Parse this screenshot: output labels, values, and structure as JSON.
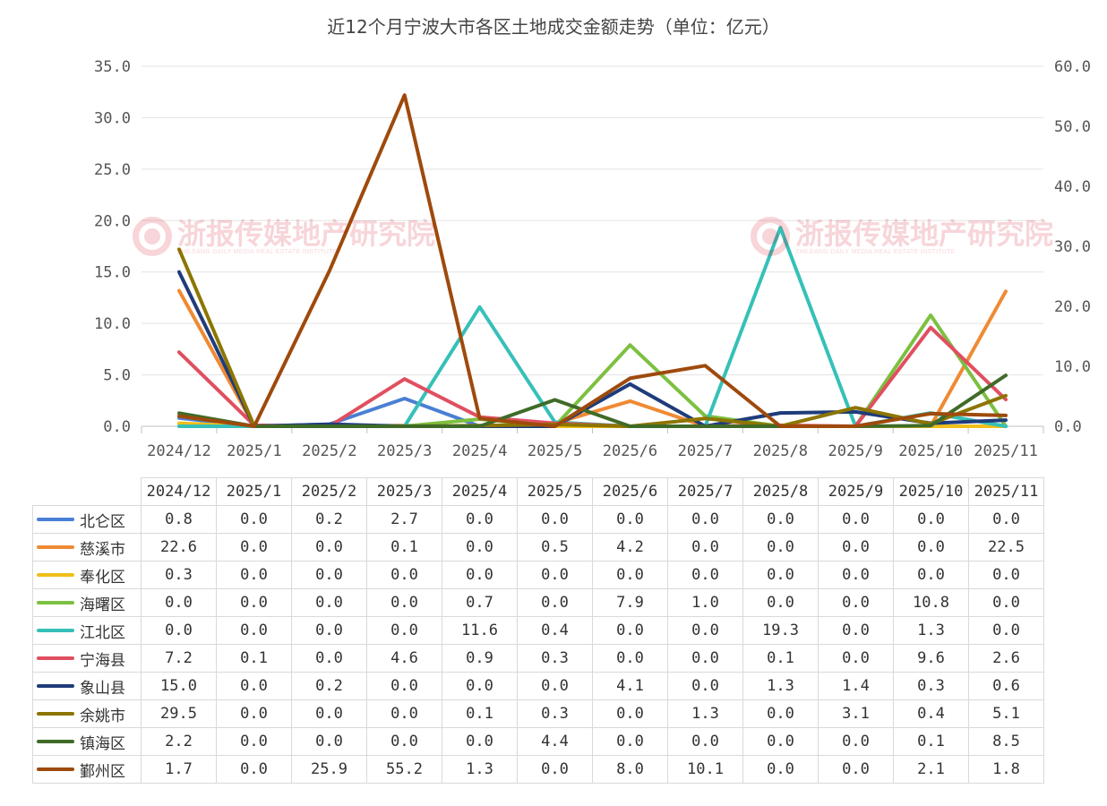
{
  "chart_data": {
    "type": "line",
    "title": "近12个月宁波大市各区土地成交金额走势（单位：亿元）",
    "categories": [
      "2024/12",
      "2025/1",
      "2025/2",
      "2025/3",
      "2025/4",
      "2025/5",
      "2025/6",
      "2025/7",
      "2025/8",
      "2025/9",
      "2025/10",
      "2025/11"
    ],
    "y_left": {
      "min": 0,
      "max": 35,
      "step": 5,
      "ticks": [
        "0.0",
        "5.0",
        "10.0",
        "15.0",
        "20.0",
        "25.0",
        "30.0",
        "35.0"
      ]
    },
    "y_right": {
      "min": 0,
      "max": 60,
      "step": 10,
      "ticks": [
        "0.0",
        "10.0",
        "20.0",
        "30.0",
        "40.0",
        "50.0",
        "60.0"
      ]
    },
    "series": [
      {
        "name": "北仑区",
        "color": "#4a7fd4",
        "axis": "left",
        "values": [
          "0.8",
          "0.0",
          "0.2",
          "2.7",
          "0.0",
          "0.0",
          "0.0",
          "0.0",
          "0.0",
          "0.0",
          "0.0",
          "0.0"
        ]
      },
      {
        "name": "慈溪市",
        "color": "#ef8a34",
        "axis": "right",
        "values": [
          "22.6",
          "0.0",
          "0.0",
          "0.1",
          "0.0",
          "0.5",
          "4.2",
          "0.0",
          "0.0",
          "0.0",
          "0.0",
          "22.5"
        ]
      },
      {
        "name": "奉化区",
        "color": "#f0bf1a",
        "axis": "left",
        "values": [
          "0.3",
          "0.0",
          "0.0",
          "0.0",
          "0.0",
          "0.0",
          "0.0",
          "0.0",
          "0.0",
          "0.0",
          "0.0",
          "0.0"
        ]
      },
      {
        "name": "海曙区",
        "color": "#7cc040",
        "axis": "left",
        "values": [
          "0.0",
          "0.0",
          "0.0",
          "0.0",
          "0.7",
          "0.0",
          "7.9",
          "1.0",
          "0.0",
          "0.0",
          "10.8",
          "0.0"
        ]
      },
      {
        "name": "江北区",
        "color": "#36c0b8",
        "axis": "left",
        "values": [
          "0.0",
          "0.0",
          "0.0",
          "0.0",
          "11.6",
          "0.4",
          "0.0",
          "0.0",
          "19.3",
          "0.0",
          "1.3",
          "0.0"
        ]
      },
      {
        "name": "宁海县",
        "color": "#e04f60",
        "axis": "left",
        "values": [
          "7.2",
          "0.1",
          "0.0",
          "4.6",
          "0.9",
          "0.3",
          "0.0",
          "0.0",
          "0.1",
          "0.0",
          "9.6",
          "2.6"
        ]
      },
      {
        "name": "象山县",
        "color": "#1f3c7a",
        "axis": "left",
        "values": [
          "15.0",
          "0.0",
          "0.2",
          "0.0",
          "0.0",
          "0.0",
          "4.1",
          "0.0",
          "1.3",
          "1.4",
          "0.3",
          "0.6"
        ]
      },
      {
        "name": "余姚市",
        "color": "#8c7500",
        "axis": "right",
        "values": [
          "29.5",
          "0.0",
          "0.0",
          "0.0",
          "0.1",
          "0.3",
          "0.0",
          "1.3",
          "0.0",
          "3.1",
          "0.4",
          "5.1"
        ]
      },
      {
        "name": "镇海区",
        "color": "#3f6b28",
        "axis": "right",
        "values": [
          "2.2",
          "0.0",
          "0.0",
          "0.0",
          "0.0",
          "4.4",
          "0.0",
          "0.0",
          "0.0",
          "0.0",
          "0.1",
          "8.5"
        ]
      },
      {
        "name": "鄞州区",
        "color": "#9e4a0c",
        "axis": "right",
        "values": [
          "1.7",
          "0.0",
          "25.9",
          "55.2",
          "1.3",
          "0.0",
          "8.0",
          "10.1",
          "0.0",
          "0.0",
          "2.1",
          "1.8"
        ]
      }
    ]
  },
  "watermark": {
    "text": "浙报传媒地产研究院",
    "subtext": "ZHEJIANG DAILY MEDIA REAL ESTATE INSTITUTE"
  }
}
